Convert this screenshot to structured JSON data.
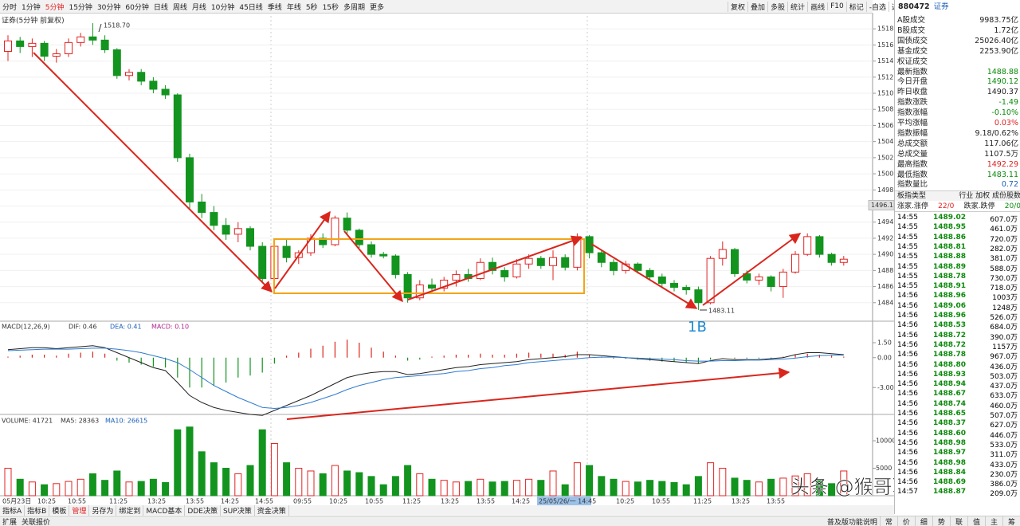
{
  "toolbar": {
    "periods": [
      "分时",
      "1分钟",
      "5分钟",
      "15分钟",
      "30分钟",
      "60分钟",
      "日线",
      "周线",
      "月线",
      "10分钟",
      "45日线",
      "季线",
      "年线",
      "5秒",
      "15秒",
      "多周期",
      "更多"
    ],
    "tools": [
      "复权",
      "叠加",
      "多股",
      "统计",
      "画线",
      "F10",
      "标记",
      "-自选",
      "返回"
    ]
  },
  "chart_data": [
    {
      "type": "candlestick",
      "title": "证券(5分钟 前复权)",
      "ylim": [
        1482,
        1519.6
      ],
      "yticks": [
        1484,
        1486,
        1488,
        1490,
        1492,
        1494,
        1496,
        1498,
        1500,
        1502,
        1504,
        1506,
        1508,
        1510,
        1512,
        1514,
        1516,
        1518
      ],
      "colors": {
        "up": "#e02424",
        "down": "#12941f"
      },
      "candles": [
        [
          1515.2,
          1517.2,
          1514.0,
          1516.5
        ],
        [
          1516.5,
          1517.0,
          1515.0,
          1515.8
        ],
        [
          1515.8,
          1516.8,
          1514.5,
          1516.2
        ],
        [
          1516.2,
          1516.5,
          1514.0,
          1514.6
        ],
        [
          1514.6,
          1515.5,
          1513.8,
          1514.9
        ],
        [
          1514.9,
          1516.8,
          1514.5,
          1516.3
        ],
        [
          1516.3,
          1517.5,
          1515.8,
          1517.0
        ],
        [
          1517.0,
          1518.7,
          1516.0,
          1516.6
        ],
        [
          1516.6,
          1517.2,
          1515.0,
          1515.4
        ],
        [
          1515.4,
          1515.6,
          1511.8,
          1512.2
        ],
        [
          1512.2,
          1513.0,
          1511.6,
          1512.6
        ],
        [
          1512.6,
          1513.0,
          1511.0,
          1511.5
        ],
        [
          1511.5,
          1512.0,
          1510.0,
          1510.5
        ],
        [
          1510.5,
          1511.0,
          1509.3,
          1509.8
        ],
        [
          1509.8,
          1510.0,
          1501.5,
          1502.0
        ],
        [
          1502.0,
          1502.5,
          1495.5,
          1496.5
        ],
        [
          1496.5,
          1497.5,
          1494.5,
          1495.2
        ],
        [
          1495.2,
          1496.0,
          1493.0,
          1493.6
        ],
        [
          1493.6,
          1494.5,
          1491.8,
          1492.5
        ],
        [
          1492.5,
          1494.0,
          1491.5,
          1493.2
        ],
        [
          1493.2,
          1493.5,
          1490.5,
          1491.0
        ],
        [
          1491.0,
          1491.5,
          1486.5,
          1487.0
        ],
        [
          1487.0,
          1491.5,
          1486.5,
          1491.0
        ],
        [
          1491.0,
          1491.8,
          1489.0,
          1489.6
        ],
        [
          1489.6,
          1490.5,
          1488.8,
          1490.2
        ],
        [
          1490.2,
          1492.5,
          1489.8,
          1492.0
        ],
        [
          1492.0,
          1492.6,
          1490.8,
          1491.2
        ],
        [
          1491.2,
          1494.8,
          1491.0,
          1494.5
        ],
        [
          1494.5,
          1495.2,
          1492.5,
          1493.0
        ],
        [
          1493.0,
          1493.2,
          1490.8,
          1491.2
        ],
        [
          1491.2,
          1491.6,
          1489.6,
          1490.0
        ],
        [
          1490.0,
          1490.3,
          1489.5,
          1489.8
        ],
        [
          1489.8,
          1490.0,
          1487.0,
          1487.5
        ],
        [
          1487.5,
          1487.8,
          1484.0,
          1484.6
        ],
        [
          1484.6,
          1486.8,
          1484.3,
          1486.2
        ],
        [
          1486.2,
          1487.0,
          1485.3,
          1485.8
        ],
        [
          1485.8,
          1487.2,
          1485.4,
          1486.8
        ],
        [
          1486.8,
          1488.0,
          1486.0,
          1487.5
        ],
        [
          1487.5,
          1488.2,
          1486.6,
          1487.0
        ],
        [
          1487.0,
          1489.5,
          1486.8,
          1489.0
        ],
        [
          1489.0,
          1489.6,
          1487.5,
          1488.0
        ],
        [
          1488.0,
          1488.4,
          1486.6,
          1487.2
        ],
        [
          1487.2,
          1489.4,
          1487.0,
          1488.8
        ],
        [
          1488.8,
          1490.0,
          1488.2,
          1489.5
        ],
        [
          1489.5,
          1489.8,
          1488.2,
          1488.6
        ],
        [
          1488.6,
          1490.5,
          1486.8,
          1489.6
        ],
        [
          1489.6,
          1490.0,
          1488.0,
          1488.4
        ],
        [
          1488.4,
          1492.6,
          1488.0,
          1492.2
        ],
        [
          1492.2,
          1492.4,
          1489.5,
          1490.2
        ],
        [
          1490.2,
          1490.6,
          1488.4,
          1489.0
        ],
        [
          1489.0,
          1489.4,
          1487.4,
          1488.0
        ],
        [
          1488.0,
          1489.2,
          1487.6,
          1488.8
        ],
        [
          1488.8,
          1489.0,
          1487.6,
          1488.0
        ],
        [
          1488.0,
          1488.3,
          1486.8,
          1487.2
        ],
        [
          1487.2,
          1487.6,
          1486.0,
          1486.4
        ],
        [
          1486.4,
          1486.8,
          1485.4,
          1485.9
        ],
        [
          1485.9,
          1486.2,
          1485.0,
          1485.6
        ],
        [
          1485.6,
          1486.0,
          1483.1,
          1484.0
        ],
        [
          1484.0,
          1489.8,
          1483.8,
          1489.5
        ],
        [
          1489.5,
          1491.6,
          1488.6,
          1490.6
        ],
        [
          1490.6,
          1490.8,
          1487.2,
          1487.6
        ],
        [
          1487.6,
          1488.0,
          1486.4,
          1486.8
        ],
        [
          1486.8,
          1487.6,
          1486.2,
          1487.2
        ],
        [
          1487.2,
          1487.4,
          1485.4,
          1486.0
        ],
        [
          1486.0,
          1488.2,
          1484.6,
          1487.8
        ],
        [
          1487.8,
          1490.4,
          1487.6,
          1490.0
        ],
        [
          1490.0,
          1492.6,
          1489.8,
          1492.2
        ],
        [
          1492.2,
          1492.4,
          1489.6,
          1490.0
        ],
        [
          1490.0,
          1490.2,
          1488.6,
          1489.0
        ],
        [
          1489.0,
          1489.8,
          1488.6,
          1489.4
        ]
      ],
      "annotations": {
        "high": "1518.70",
        "low": "1483.11",
        "signal": "1B"
      },
      "last_price": 1496.1,
      "x_labels": [
        "05月23日",
        "10:25",
        "10:55",
        "11:25",
        "13:25",
        "13:55",
        "14:25",
        "14:55",
        "09:55",
        "10:25",
        "10:55",
        "11:25",
        "13:25",
        "13:55",
        "14:25",
        "25/05/26/一 14:45",
        "10:25",
        "10:55",
        "11:25",
        "13:25",
        "13:55"
      ]
    },
    {
      "type": "macd",
      "title": "MACD(12,26,9)",
      "legend": [
        "DIF: 0.46",
        "DEA: 0.41",
        "MACD: 0.10"
      ],
      "ylim": [
        -5.7,
        3.5
      ],
      "yticks": [
        {
          "value": 1.5,
          "label": "1.50"
        },
        {
          "value": 0,
          "label": "0.00"
        },
        {
          "value": -3,
          "label": "-3.00"
        }
      ],
      "histogram": [
        0.1,
        0.2,
        0.3,
        0.3,
        0.2,
        0.4,
        0.5,
        0.6,
        0.4,
        -0.3,
        -0.5,
        -0.7,
        -0.9,
        -1.0,
        -2.0,
        -3.0,
        -3.0,
        -2.8,
        -2.5,
        -2.0,
        -1.8,
        -1.5,
        -0.6,
        0.2,
        0.5,
        0.9,
        1.2,
        1.6,
        1.8,
        1.5,
        1.0,
        0.6,
        0.2,
        -0.3,
        -0.2,
        0.1,
        0.2,
        0.3,
        0.3,
        0.4,
        0.3,
        0.3,
        0.4,
        0.5,
        0.4,
        0.4,
        0.3,
        0.6,
        0.3,
        0.1,
        -0.1,
        -0.1,
        -0.2,
        -0.3,
        -0.4,
        -0.4,
        -0.5,
        -0.6,
        -0.2,
        0.0,
        -0.1,
        -0.1,
        -0.1,
        -0.1,
        0.1,
        0.3,
        0.4,
        0.3,
        0.2,
        0.1
      ],
      "dif": [
        0.8,
        0.9,
        1.0,
        1.0,
        0.9,
        1.0,
        1.1,
        1.2,
        1.0,
        0.5,
        0.0,
        -0.5,
        -1.0,
        -1.3,
        -2.5,
        -3.8,
        -4.5,
        -5.0,
        -5.3,
        -5.5,
        -5.7,
        -5.8,
        -5.3,
        -4.8,
        -4.3,
        -3.8,
        -3.2,
        -2.6,
        -2.0,
        -1.7,
        -1.5,
        -1.4,
        -1.4,
        -1.7,
        -1.6,
        -1.4,
        -1.2,
        -1.0,
        -0.9,
        -0.7,
        -0.6,
        -0.5,
        -0.4,
        -0.2,
        -0.1,
        0.0,
        0.1,
        0.3,
        0.3,
        0.2,
        0.1,
        0.0,
        -0.1,
        -0.2,
        -0.3,
        -0.4,
        -0.5,
        -0.6,
        -0.3,
        -0.1,
        -0.2,
        -0.2,
        -0.2,
        -0.1,
        0.0,
        0.3,
        0.5,
        0.5,
        0.4,
        0.3
      ],
      "dea": [
        0.7,
        0.75,
        0.8,
        0.85,
        0.85,
        0.85,
        0.9,
        0.95,
        0.95,
        0.85,
        0.7,
        0.5,
        0.2,
        -0.1,
        -0.5,
        -1.2,
        -2.0,
        -2.8,
        -3.4,
        -4.0,
        -4.5,
        -5.0,
        -5.1,
        -5.0,
        -4.8,
        -4.5,
        -4.1,
        -3.7,
        -3.2,
        -2.8,
        -2.5,
        -2.2,
        -2.0,
        -1.9,
        -1.8,
        -1.7,
        -1.6,
        -1.4,
        -1.3,
        -1.1,
        -1.0,
        -0.8,
        -0.7,
        -0.5,
        -0.4,
        -0.3,
        -0.2,
        -0.1,
        0.0,
        0.05,
        0.05,
        0.0,
        -0.05,
        -0.1,
        -0.15,
        -0.2,
        -0.3,
        -0.35,
        -0.35,
        -0.3,
        -0.3,
        -0.25,
        -0.25,
        -0.2,
        -0.15,
        -0.05,
        0.1,
        0.2,
        0.25,
        0.25
      ]
    },
    {
      "type": "volume",
      "legend": [
        "VOLUME: 41721",
        "MA5: 28363",
        "MA10: 26615"
      ],
      "ylim": [
        0,
        14500
      ],
      "yticks": [
        10000,
        5000
      ],
      "values": [
        5000,
        3000,
        2500,
        2000,
        2200,
        2600,
        3000,
        4000,
        2800,
        4500,
        2500,
        2600,
        3000,
        2400,
        12000,
        12500,
        8000,
        6000,
        5000,
        4000,
        5500,
        12000,
        9500,
        6000,
        5000,
        4500,
        4000,
        5500,
        4500,
        4200,
        3500,
        2000,
        3500,
        5500,
        4000,
        3000,
        2800,
        2500,
        2600,
        3000,
        2500,
        2600,
        2800,
        3000,
        2800,
        4500,
        2000,
        6000,
        5500,
        3500,
        3000,
        2600,
        2500,
        2800,
        2600,
        2400,
        2000,
        3500,
        6000,
        5000,
        3200,
        2800,
        2500,
        3000,
        3200,
        3600,
        4000,
        2800,
        2200,
        4500
      ]
    }
  ],
  "quote": {
    "code": "880472",
    "name": "证券",
    "stats": [
      {
        "label": "A股成交",
        "value": "9983.75亿",
        "color": "#222"
      },
      {
        "label": "B股成交",
        "value": "1.72亿",
        "color": "#222"
      },
      {
        "label": "国债成交",
        "value": "25026.40亿",
        "color": "#222"
      },
      {
        "label": "基金成交",
        "value": "2253.90亿",
        "color": "#222"
      },
      {
        "label": "权证成交",
        "value": "",
        "color": "#222"
      },
      {
        "label": "最新指数",
        "value": "1488.88",
        "color": "#0a8a0a"
      },
      {
        "label": "今日开盘",
        "value": "1490.12",
        "color": "#0a8a0a"
      },
      {
        "label": "昨日收盘",
        "value": "1490.37",
        "color": "#222"
      },
      {
        "label": "指数涨跌",
        "value": "-1.49",
        "color": "#0a8a0a"
      },
      {
        "label": "指数涨幅",
        "value": "-0.10%",
        "color": "#0a8a0a"
      },
      {
        "label": "平均涨幅",
        "value": "0.03%",
        "color": "#e02020"
      },
      {
        "label": "指数振幅",
        "value": "9.18/0.62%",
        "color": "#222"
      },
      {
        "label": "总成交额",
        "value": "117.06亿",
        "color": "#222"
      },
      {
        "label": "总成交量",
        "value": "1107.5万",
        "color": "#222"
      },
      {
        "label": "最高指数",
        "value": "1492.29",
        "color": "#e02020"
      },
      {
        "label": "最低指数",
        "value": "1483.11",
        "color": "#0a8a0a"
      },
      {
        "label": "指数量比",
        "value": "0.72",
        "color": "#1c5fb8"
      }
    ],
    "board": [
      "板指类型",
      "行业 加权 成份股数"
    ],
    "breadth": [
      "涨家.涨停",
      "22/0",
      "跌家.跌停",
      "20/0"
    ],
    "ticks": [
      [
        "14:55",
        "1489.02",
        "607.0万"
      ],
      [
        "14:55",
        "1488.95",
        "461.0万"
      ],
      [
        "14:55",
        "1488.86",
        "720.0万"
      ],
      [
        "14:55",
        "1488.81",
        "282.0万"
      ],
      [
        "14:55",
        "1488.88",
        "381.0万"
      ],
      [
        "14:55",
        "1488.89",
        "588.0万"
      ],
      [
        "14:55",
        "1488.78",
        "730.0万"
      ],
      [
        "14:55",
        "1488.91",
        "718.0万"
      ],
      [
        "14:56",
        "1488.96",
        "1003万"
      ],
      [
        "14:56",
        "1489.06",
        "1248万"
      ],
      [
        "14:56",
        "1488.96",
        "526.0万"
      ],
      [
        "14:56",
        "1488.53",
        "684.0万"
      ],
      [
        "14:56",
        "1488.72",
        "390.0万"
      ],
      [
        "14:56",
        "1488.72",
        "1157万"
      ],
      [
        "14:56",
        "1488.78",
        "967.0万"
      ],
      [
        "14:56",
        "1488.80",
        "436.0万"
      ],
      [
        "14:56",
        "1488.93",
        "503.0万"
      ],
      [
        "14:56",
        "1488.94",
        "437.0万"
      ],
      [
        "14:56",
        "1488.67",
        "633.0万"
      ],
      [
        "14:56",
        "1488.74",
        "460.0万"
      ],
      [
        "14:56",
        "1488.65",
        "507.0万"
      ],
      [
        "14:56",
        "1488.37",
        "627.0万"
      ],
      [
        "14:56",
        "1488.60",
        "446.0万"
      ],
      [
        "14:56",
        "1488.98",
        "533.0万"
      ],
      [
        "14:56",
        "1488.97",
        "311.0万"
      ],
      [
        "14:56",
        "1488.98",
        "433.0万"
      ],
      [
        "14:56",
        "1488.84",
        "230.0万"
      ],
      [
        "14:56",
        "1488.69",
        "386.0万"
      ],
      [
        "14:57",
        "1488.87",
        "209.0万"
      ]
    ]
  },
  "bottom": {
    "tabs": [
      "指标A",
      "指标B",
      "模板",
      "管理",
      "另存为",
      "绑定到",
      "MACD基本",
      "DDE决策",
      "SUP决策",
      "资金决策"
    ],
    "tabs2": [
      "扩展",
      "关联报价"
    ],
    "status": "普及版功能说明",
    "icons": [
      "常",
      "价",
      "细",
      "势",
      "联",
      "值",
      "主",
      "筹"
    ]
  },
  "watermark": "头条 @猴哥聊缠论"
}
